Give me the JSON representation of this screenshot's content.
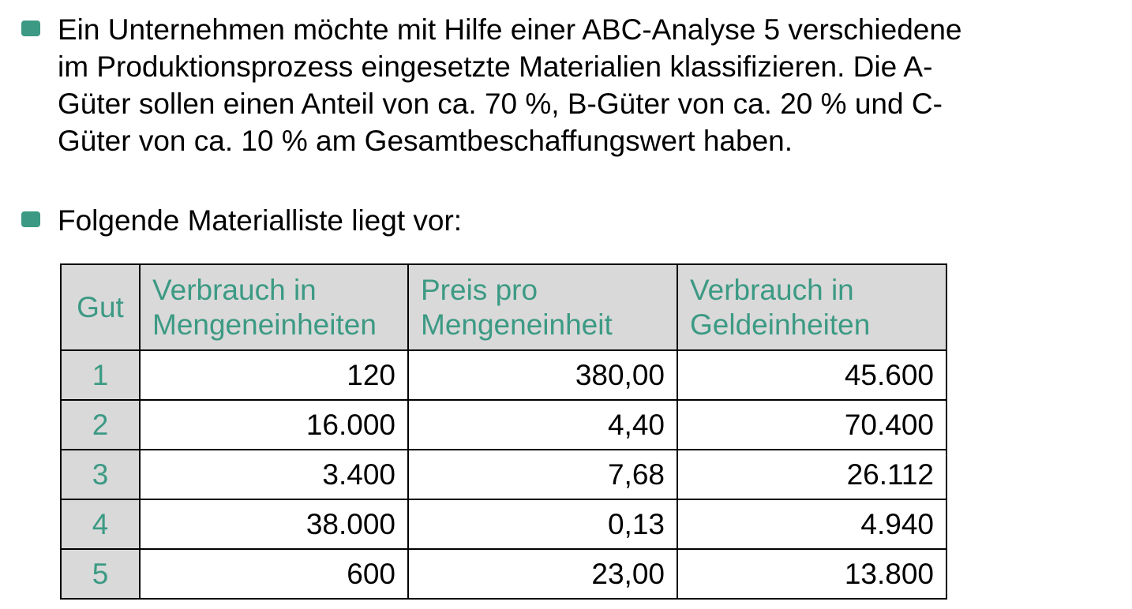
{
  "colors": {
    "bullet": "#3c9a84",
    "header_text": "#3c9a84",
    "header_bg": "#d9d9d9",
    "gut_column_bg": "#d9d9d9",
    "border": "#000000",
    "body_text": "#000000"
  },
  "bullets": [
    {
      "lines": [
        "Ein Unternehmen möchte mit Hilfe einer ABC-Analyse 5 verschiedene",
        "im Produktionsprozess eingesetzte Materialien klassifizieren. Die A-",
        "Güter sollen einen Anteil von ca. 70 %, B-Güter von ca. 20 % und C-",
        "Güter von ca. 10 % am Gesamtbeschaffungswert haben."
      ]
    },
    {
      "lines": [
        "Folgende Materialliste liegt vor:"
      ]
    }
  ],
  "table": {
    "headers": [
      {
        "lines": [
          "Gut"
        ]
      },
      {
        "lines": [
          "Verbrauch in",
          "Mengeneinheiten"
        ]
      },
      {
        "lines": [
          "Preis pro",
          "Mengeneinheit"
        ]
      },
      {
        "lines": [
          "Verbrauch in",
          "Geldeinheiten"
        ]
      }
    ],
    "rows": [
      [
        "1",
        "120",
        "380,00",
        "45.600"
      ],
      [
        "2",
        "16.000",
        "4,40",
        "70.400"
      ],
      [
        "3",
        "3.400",
        "7,68",
        "26.112"
      ],
      [
        "4",
        "38.000",
        "0,13",
        "4.940"
      ],
      [
        "5",
        "600",
        "23,00",
        "13.800"
      ]
    ]
  }
}
